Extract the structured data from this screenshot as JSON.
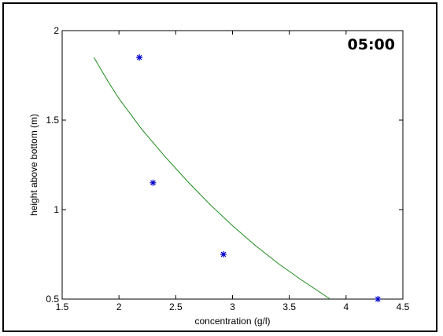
{
  "chart_data": {
    "type": "scatter",
    "xlabel": "concentration (g/l)",
    "ylabel": "height above bottom (m)",
    "xlim": [
      1.5,
      4.5
    ],
    "ylim": [
      0.5,
      2
    ],
    "xticks": [
      "1.5",
      "2",
      "2.5",
      "3",
      "3.5",
      "4",
      "4.5"
    ],
    "yticks": [
      "0.5",
      "1",
      "1.5",
      "2"
    ],
    "grid": false,
    "annotation": "05:00",
    "series": [
      {
        "type": "scatter",
        "marker": "asterisk",
        "color": "#0000cc",
        "x": [
          2.18,
          2.3,
          2.92,
          4.28
        ],
        "y": [
          1.85,
          1.15,
          0.75,
          0.5
        ]
      },
      {
        "type": "line",
        "color": "#1a8a1a",
        "x": [
          1.78,
          1.9,
          2.0,
          2.2,
          2.4,
          2.6,
          2.8,
          3.0,
          3.2,
          3.4,
          3.6,
          3.86
        ],
        "y": [
          1.85,
          1.72,
          1.62,
          1.45,
          1.3,
          1.16,
          1.03,
          0.91,
          0.8,
          0.7,
          0.61,
          0.5
        ]
      }
    ]
  }
}
